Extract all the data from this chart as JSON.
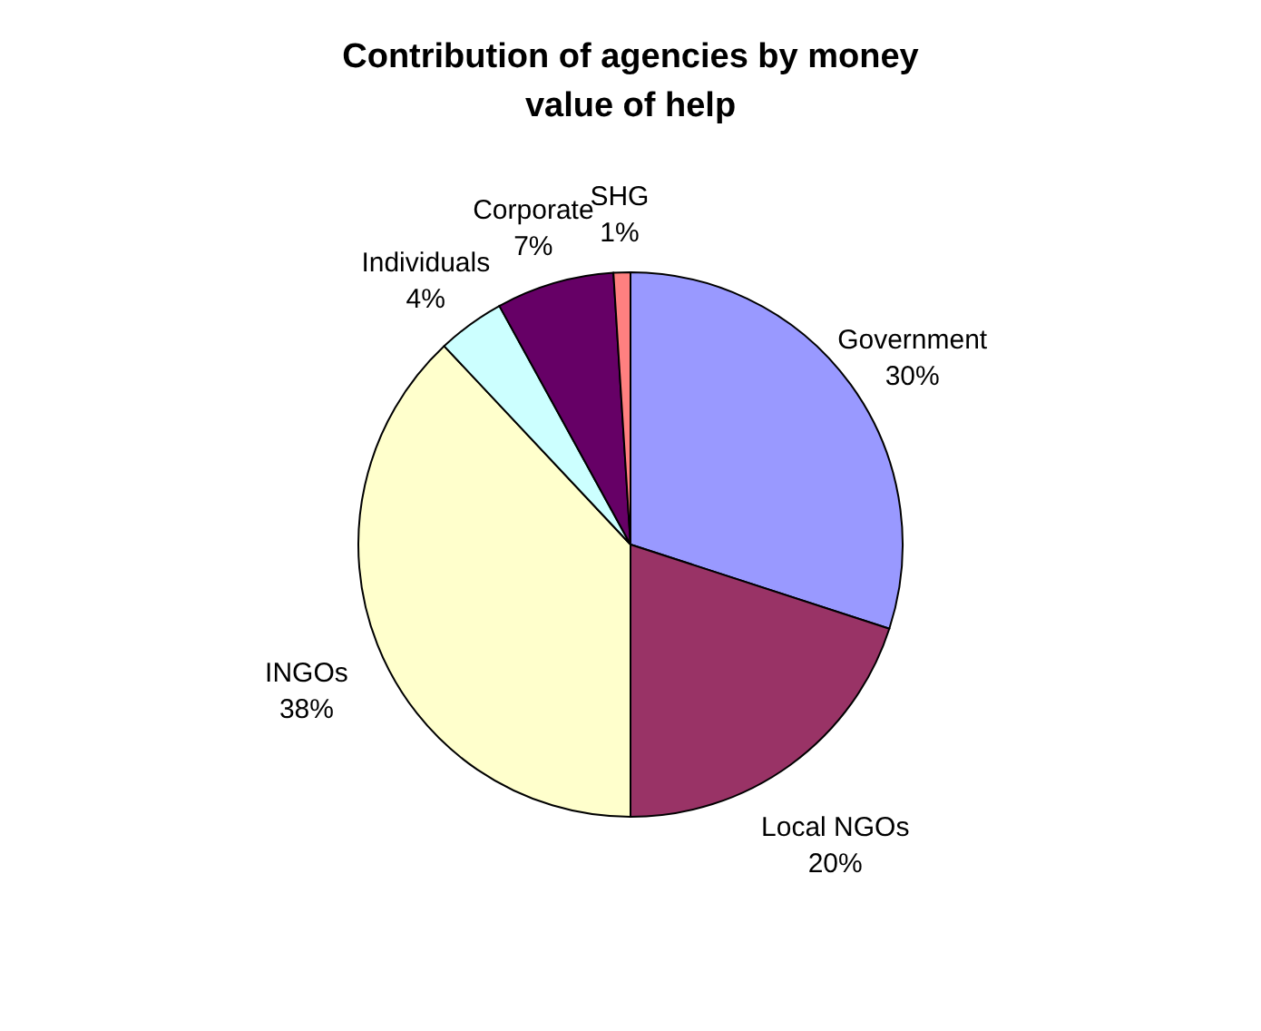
{
  "chart_data": {
    "type": "pie",
    "title": "Contribution of agencies by money value of help",
    "categories": [
      "Government",
      "Local NGOs",
      "INGOs",
      "Individuals",
      "Corporate",
      "SHG"
    ],
    "values": [
      30,
      20,
      38,
      4,
      7,
      1
    ],
    "value_labels": [
      "30%",
      "20%",
      "38%",
      "4%",
      "7%",
      "1%"
    ],
    "colors": [
      "#9999ff",
      "#993366",
      "#ffffcc",
      "#ccffff",
      "#660066",
      "#ff8080"
    ]
  }
}
